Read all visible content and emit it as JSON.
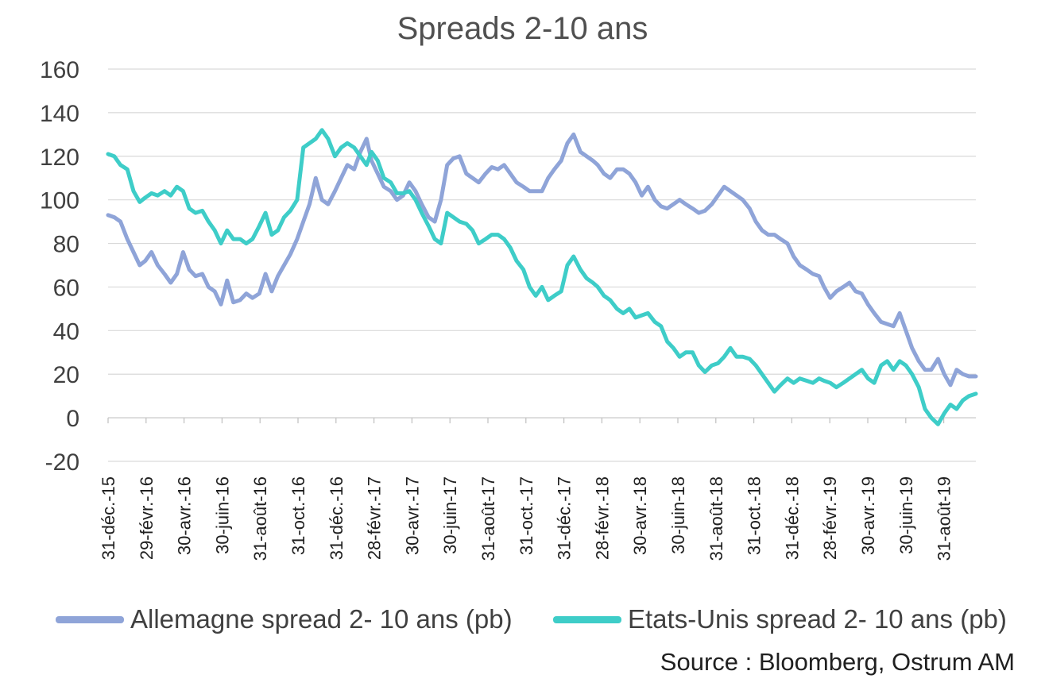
{
  "chart_data": {
    "type": "line",
    "title": "Spreads 2-10 ans",
    "xlabel": "",
    "ylabel": "",
    "ylim": [
      -20,
      160
    ],
    "yticks": [
      160,
      140,
      120,
      100,
      80,
      60,
      40,
      20,
      0,
      -20
    ],
    "x_tick_labels": [
      "31-déc.-15",
      "29-févr.-16",
      "30-avr.-16",
      "30-juin-16",
      "31-août-16",
      "31-oct.-16",
      "31-déc.-16",
      "28-févr.-17",
      "30-avr.-17",
      "30-juin-17",
      "31-août-17",
      "31-oct.-17",
      "31-déc.-17",
      "28-févr.-18",
      "30-avr.-18",
      "30-juin-18",
      "31-août-18",
      "31-oct.-18",
      "31-déc.-18",
      "28-févr.-19",
      "30-avr.-19",
      "30-juin-19",
      "31-août-19"
    ],
    "x_range": [
      "2015-12-31",
      "2019-10-31"
    ],
    "grid": "horizontal",
    "legend_position": "bottom",
    "series": [
      {
        "name": "Allemagne spread 2- 10 ans (pb)",
        "color": "#8fa4d8",
        "points": [
          [
            "2015-12-31",
            93
          ],
          [
            "2016-01-10",
            92
          ],
          [
            "2016-01-20",
            90
          ],
          [
            "2016-01-31",
            82
          ],
          [
            "2016-02-10",
            76
          ],
          [
            "2016-02-20",
            70
          ],
          [
            "2016-02-29",
            72
          ],
          [
            "2016-03-10",
            76
          ],
          [
            "2016-03-20",
            70
          ],
          [
            "2016-03-31",
            66
          ],
          [
            "2016-04-10",
            62
          ],
          [
            "2016-04-20",
            66
          ],
          [
            "2016-04-30",
            76
          ],
          [
            "2016-05-10",
            68
          ],
          [
            "2016-05-20",
            65
          ],
          [
            "2016-05-31",
            66
          ],
          [
            "2016-06-10",
            60
          ],
          [
            "2016-06-20",
            58
          ],
          [
            "2016-06-30",
            52
          ],
          [
            "2016-07-10",
            63
          ],
          [
            "2016-07-20",
            53
          ],
          [
            "2016-07-31",
            54
          ],
          [
            "2016-08-10",
            57
          ],
          [
            "2016-08-20",
            55
          ],
          [
            "2016-08-31",
            57
          ],
          [
            "2016-09-10",
            66
          ],
          [
            "2016-09-20",
            58
          ],
          [
            "2016-09-30",
            65
          ],
          [
            "2016-10-10",
            70
          ],
          [
            "2016-10-20",
            75
          ],
          [
            "2016-10-31",
            82
          ],
          [
            "2016-11-10",
            90
          ],
          [
            "2016-11-20",
            98
          ],
          [
            "2016-11-30",
            110
          ],
          [
            "2016-12-10",
            100
          ],
          [
            "2016-12-20",
            98
          ],
          [
            "2016-12-31",
            104
          ],
          [
            "2017-01-10",
            110
          ],
          [
            "2017-01-20",
            116
          ],
          [
            "2017-01-31",
            114
          ],
          [
            "2017-02-10",
            122
          ],
          [
            "2017-02-20",
            128
          ],
          [
            "2017-02-28",
            118
          ],
          [
            "2017-03-10",
            112
          ],
          [
            "2017-03-20",
            106
          ],
          [
            "2017-03-31",
            104
          ],
          [
            "2017-04-10",
            100
          ],
          [
            "2017-04-20",
            102
          ],
          [
            "2017-04-30",
            108
          ],
          [
            "2017-05-10",
            104
          ],
          [
            "2017-05-20",
            98
          ],
          [
            "2017-05-31",
            92
          ],
          [
            "2017-06-10",
            90
          ],
          [
            "2017-06-20",
            100
          ],
          [
            "2017-06-30",
            116
          ],
          [
            "2017-07-10",
            119
          ],
          [
            "2017-07-20",
            120
          ],
          [
            "2017-07-31",
            112
          ],
          [
            "2017-08-10",
            110
          ],
          [
            "2017-08-20",
            108
          ],
          [
            "2017-08-31",
            112
          ],
          [
            "2017-09-10",
            115
          ],
          [
            "2017-09-20",
            114
          ],
          [
            "2017-09-30",
            116
          ],
          [
            "2017-10-10",
            112
          ],
          [
            "2017-10-20",
            108
          ],
          [
            "2017-10-31",
            106
          ],
          [
            "2017-11-10",
            104
          ],
          [
            "2017-11-20",
            104
          ],
          [
            "2017-11-30",
            104
          ],
          [
            "2017-12-10",
            110
          ],
          [
            "2017-12-20",
            114
          ],
          [
            "2017-12-31",
            118
          ],
          [
            "2018-01-10",
            126
          ],
          [
            "2018-01-20",
            130
          ],
          [
            "2018-01-31",
            122
          ],
          [
            "2018-02-10",
            120
          ],
          [
            "2018-02-20",
            118
          ],
          [
            "2018-02-28",
            116
          ],
          [
            "2018-03-10",
            112
          ],
          [
            "2018-03-20",
            110
          ],
          [
            "2018-03-31",
            114
          ],
          [
            "2018-04-10",
            114
          ],
          [
            "2018-04-20",
            112
          ],
          [
            "2018-04-30",
            108
          ],
          [
            "2018-05-10",
            102
          ],
          [
            "2018-05-20",
            106
          ],
          [
            "2018-05-31",
            100
          ],
          [
            "2018-06-10",
            97
          ],
          [
            "2018-06-20",
            96
          ],
          [
            "2018-06-30",
            98
          ],
          [
            "2018-07-10",
            100
          ],
          [
            "2018-07-20",
            98
          ],
          [
            "2018-07-31",
            96
          ],
          [
            "2018-08-10",
            94
          ],
          [
            "2018-08-20",
            95
          ],
          [
            "2018-08-31",
            98
          ],
          [
            "2018-09-10",
            102
          ],
          [
            "2018-09-20",
            106
          ],
          [
            "2018-09-30",
            104
          ],
          [
            "2018-10-10",
            102
          ],
          [
            "2018-10-20",
            100
          ],
          [
            "2018-10-31",
            96
          ],
          [
            "2018-11-10",
            90
          ],
          [
            "2018-11-20",
            86
          ],
          [
            "2018-11-30",
            84
          ],
          [
            "2018-12-10",
            84
          ],
          [
            "2018-12-20",
            82
          ],
          [
            "2018-12-31",
            80
          ],
          [
            "2019-01-10",
            74
          ],
          [
            "2019-01-20",
            70
          ],
          [
            "2019-01-31",
            68
          ],
          [
            "2019-02-10",
            66
          ],
          [
            "2019-02-20",
            65
          ],
          [
            "2019-02-28",
            60
          ],
          [
            "2019-03-10",
            55
          ],
          [
            "2019-03-20",
            58
          ],
          [
            "2019-03-31",
            60
          ],
          [
            "2019-04-10",
            62
          ],
          [
            "2019-04-20",
            58
          ],
          [
            "2019-04-30",
            57
          ],
          [
            "2019-05-10",
            52
          ],
          [
            "2019-05-20",
            48
          ],
          [
            "2019-05-31",
            44
          ],
          [
            "2019-06-10",
            43
          ],
          [
            "2019-06-20",
            42
          ],
          [
            "2019-06-30",
            48
          ],
          [
            "2019-07-10",
            40
          ],
          [
            "2019-07-20",
            32
          ],
          [
            "2019-07-31",
            26
          ],
          [
            "2019-08-10",
            22
          ],
          [
            "2019-08-20",
            22
          ],
          [
            "2019-08-31",
            27
          ],
          [
            "2019-09-10",
            20
          ],
          [
            "2019-09-20",
            15
          ],
          [
            "2019-09-30",
            22
          ],
          [
            "2019-10-10",
            20
          ],
          [
            "2019-10-20",
            19
          ],
          [
            "2019-10-31",
            19
          ]
        ]
      },
      {
        "name": "Etats-Unis spread 2- 10 ans (pb)",
        "color": "#3ecdc8",
        "points": [
          [
            "2015-12-31",
            121
          ],
          [
            "2016-01-10",
            120
          ],
          [
            "2016-01-20",
            116
          ],
          [
            "2016-01-31",
            114
          ],
          [
            "2016-02-10",
            104
          ],
          [
            "2016-02-20",
            99
          ],
          [
            "2016-02-29",
            101
          ],
          [
            "2016-03-10",
            103
          ],
          [
            "2016-03-20",
            102
          ],
          [
            "2016-03-31",
            104
          ],
          [
            "2016-04-10",
            102
          ],
          [
            "2016-04-20",
            106
          ],
          [
            "2016-04-30",
            104
          ],
          [
            "2016-05-10",
            96
          ],
          [
            "2016-05-20",
            94
          ],
          [
            "2016-05-31",
            95
          ],
          [
            "2016-06-10",
            90
          ],
          [
            "2016-06-20",
            86
          ],
          [
            "2016-06-30",
            80
          ],
          [
            "2016-07-10",
            86
          ],
          [
            "2016-07-20",
            82
          ],
          [
            "2016-07-31",
            82
          ],
          [
            "2016-08-10",
            80
          ],
          [
            "2016-08-20",
            82
          ],
          [
            "2016-08-31",
            88
          ],
          [
            "2016-09-10",
            94
          ],
          [
            "2016-09-20",
            84
          ],
          [
            "2016-09-30",
            86
          ],
          [
            "2016-10-10",
            92
          ],
          [
            "2016-10-20",
            95
          ],
          [
            "2016-10-31",
            100
          ],
          [
            "2016-11-10",
            124
          ],
          [
            "2016-11-20",
            126
          ],
          [
            "2016-11-30",
            128
          ],
          [
            "2016-12-10",
            132
          ],
          [
            "2016-12-20",
            128
          ],
          [
            "2016-12-31",
            120
          ],
          [
            "2017-01-10",
            124
          ],
          [
            "2017-01-20",
            126
          ],
          [
            "2017-01-31",
            124
          ],
          [
            "2017-02-10",
            120
          ],
          [
            "2017-02-20",
            116
          ],
          [
            "2017-02-28",
            122
          ],
          [
            "2017-03-10",
            118
          ],
          [
            "2017-03-20",
            110
          ],
          [
            "2017-03-31",
            108
          ],
          [
            "2017-04-10",
            103
          ],
          [
            "2017-04-20",
            103
          ],
          [
            "2017-04-30",
            104
          ],
          [
            "2017-05-10",
            100
          ],
          [
            "2017-05-20",
            94
          ],
          [
            "2017-05-31",
            88
          ],
          [
            "2017-06-10",
            82
          ],
          [
            "2017-06-20",
            80
          ],
          [
            "2017-06-30",
            94
          ],
          [
            "2017-07-10",
            92
          ],
          [
            "2017-07-20",
            90
          ],
          [
            "2017-07-31",
            89
          ],
          [
            "2017-08-10",
            86
          ],
          [
            "2017-08-20",
            80
          ],
          [
            "2017-08-31",
            82
          ],
          [
            "2017-09-10",
            84
          ],
          [
            "2017-09-20",
            84
          ],
          [
            "2017-09-30",
            82
          ],
          [
            "2017-10-10",
            78
          ],
          [
            "2017-10-20",
            72
          ],
          [
            "2017-10-31",
            68
          ],
          [
            "2017-11-10",
            60
          ],
          [
            "2017-11-20",
            56
          ],
          [
            "2017-11-30",
            60
          ],
          [
            "2017-12-10",
            54
          ],
          [
            "2017-12-20",
            56
          ],
          [
            "2017-12-31",
            58
          ],
          [
            "2018-01-10",
            70
          ],
          [
            "2018-01-20",
            74
          ],
          [
            "2018-01-31",
            68
          ],
          [
            "2018-02-10",
            64
          ],
          [
            "2018-02-20",
            62
          ],
          [
            "2018-02-28",
            60
          ],
          [
            "2018-03-10",
            56
          ],
          [
            "2018-03-20",
            54
          ],
          [
            "2018-03-31",
            50
          ],
          [
            "2018-04-10",
            48
          ],
          [
            "2018-04-20",
            50
          ],
          [
            "2018-04-30",
            46
          ],
          [
            "2018-05-10",
            47
          ],
          [
            "2018-05-20",
            48
          ],
          [
            "2018-05-31",
            44
          ],
          [
            "2018-06-10",
            42
          ],
          [
            "2018-06-20",
            35
          ],
          [
            "2018-06-30",
            32
          ],
          [
            "2018-07-10",
            28
          ],
          [
            "2018-07-20",
            30
          ],
          [
            "2018-07-31",
            30
          ],
          [
            "2018-08-10",
            24
          ],
          [
            "2018-08-20",
            21
          ],
          [
            "2018-08-31",
            24
          ],
          [
            "2018-09-10",
            25
          ],
          [
            "2018-09-20",
            28
          ],
          [
            "2018-09-30",
            32
          ],
          [
            "2018-10-10",
            28
          ],
          [
            "2018-10-20",
            28
          ],
          [
            "2018-10-31",
            27
          ],
          [
            "2018-11-10",
            24
          ],
          [
            "2018-11-20",
            20
          ],
          [
            "2018-11-30",
            16
          ],
          [
            "2018-12-10",
            12
          ],
          [
            "2018-12-20",
            15
          ],
          [
            "2018-12-31",
            18
          ],
          [
            "2019-01-10",
            16
          ],
          [
            "2019-01-20",
            18
          ],
          [
            "2019-01-31",
            17
          ],
          [
            "2019-02-10",
            16
          ],
          [
            "2019-02-20",
            18
          ],
          [
            "2019-02-28",
            17
          ],
          [
            "2019-03-10",
            16
          ],
          [
            "2019-03-20",
            14
          ],
          [
            "2019-03-31",
            16
          ],
          [
            "2019-04-10",
            18
          ],
          [
            "2019-04-20",
            20
          ],
          [
            "2019-04-30",
            22
          ],
          [
            "2019-05-10",
            18
          ],
          [
            "2019-05-20",
            16
          ],
          [
            "2019-05-31",
            24
          ],
          [
            "2019-06-10",
            26
          ],
          [
            "2019-06-20",
            22
          ],
          [
            "2019-06-30",
            26
          ],
          [
            "2019-07-10",
            24
          ],
          [
            "2019-07-20",
            20
          ],
          [
            "2019-07-31",
            14
          ],
          [
            "2019-08-10",
            4
          ],
          [
            "2019-08-20",
            0
          ],
          [
            "2019-08-31",
            -3
          ],
          [
            "2019-09-10",
            2
          ],
          [
            "2019-09-20",
            6
          ],
          [
            "2019-09-30",
            4
          ],
          [
            "2019-10-10",
            8
          ],
          [
            "2019-10-20",
            10
          ],
          [
            "2019-10-31",
            11
          ]
        ]
      }
    ]
  },
  "source": "Source : Bloomberg, Ostrum AM"
}
